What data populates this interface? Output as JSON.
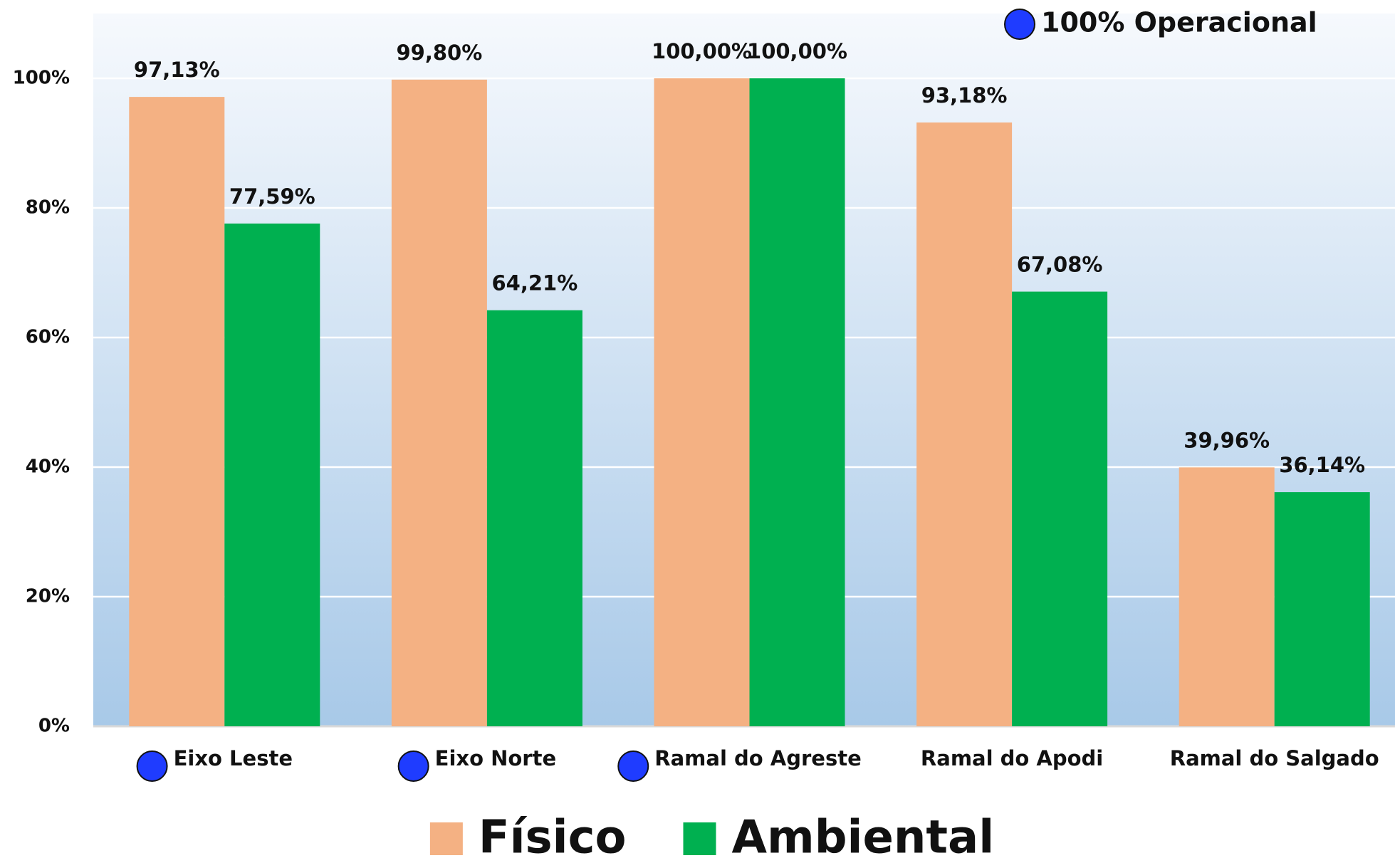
{
  "chart_data": {
    "type": "bar",
    "categories": [
      "Eixo Leste",
      "Eixo Norte",
      "Ramal do Agreste",
      "Ramal do Apodi",
      "Ramal do Salgado"
    ],
    "series": [
      {
        "name": "Físico",
        "color": "#f4b183",
        "values": [
          97.13,
          99.8,
          100.0,
          93.18,
          39.96
        ],
        "value_labels": [
          "97,13%",
          "99,80%",
          "100,00%",
          "93,18%",
          "39,96%"
        ]
      },
      {
        "name": "Ambiental",
        "color": "#00b050",
        "values": [
          77.59,
          64.21,
          100.0,
          67.08,
          36.14
        ],
        "value_labels": [
          "77,59%",
          "64,21%",
          "100,00%",
          "67,08%",
          "36,14%"
        ]
      }
    ],
    "ylim": [
      0,
      110
    ],
    "yticks": [
      {
        "value": 0,
        "label": "0%"
      },
      {
        "value": 20,
        "label": "20%"
      },
      {
        "value": 40,
        "label": "40%"
      },
      {
        "value": 60,
        "label": "60%"
      },
      {
        "value": 80,
        "label": "80%"
      },
      {
        "value": 100,
        "label": "100%"
      }
    ],
    "grid": true,
    "annotation": {
      "text": "100% Operacional",
      "color": "#1f3cff",
      "categories_marked": [
        true,
        true,
        true,
        false,
        false
      ]
    },
    "legend": "bottom"
  }
}
